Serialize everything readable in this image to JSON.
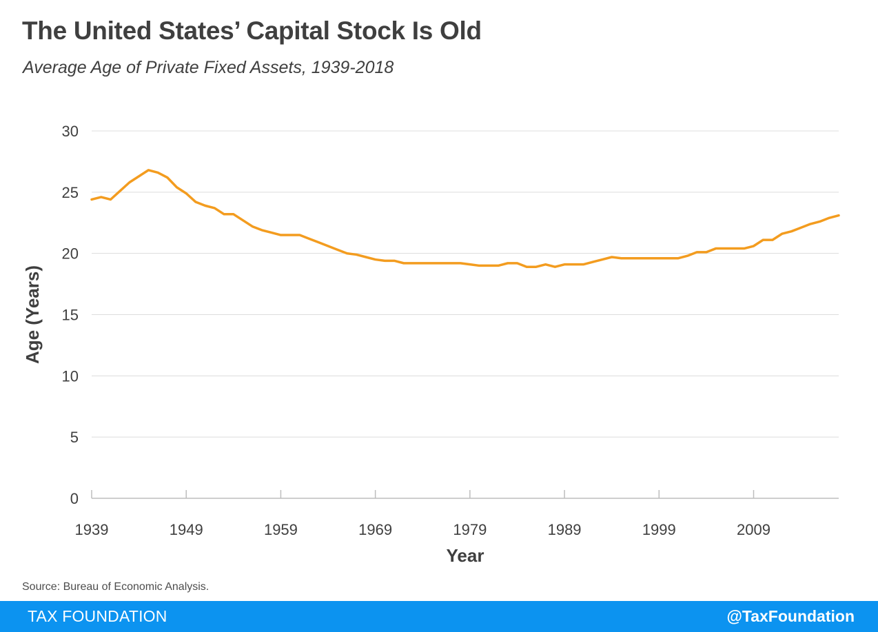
{
  "header": {
    "title": "The United States’ Capital Stock Is Old",
    "subtitle": "Average Age of Private Fixed Assets, 1939-2018"
  },
  "footer": {
    "source": "Source: Bureau of Economic Analysis.",
    "brand": "TAX FOUNDATION",
    "handle": "@TaxFoundation"
  },
  "colors": {
    "line": "#f39c1f",
    "grid": "#dcdcdc",
    "axis": "#bdbdbd",
    "text": "#3f3f3f",
    "footer_bg": "#0c93f0"
  },
  "chart_data": {
    "type": "line",
    "title": "The United States’ Capital Stock Is Old",
    "subtitle": "Average Age of Private Fixed Assets, 1939-2018",
    "xlabel": "Year",
    "ylabel": "Age (Years)",
    "ylim": [
      0,
      30
    ],
    "yticks": [
      0,
      5,
      10,
      15,
      20,
      25,
      30
    ],
    "xlim": [
      1939,
      2018
    ],
    "xticks": [
      1939,
      1949,
      1959,
      1969,
      1979,
      1989,
      1999,
      2009
    ],
    "grid": "horizontal",
    "legend": "none",
    "series": [
      {
        "x": [
          1939,
          1940,
          1941,
          1942,
          1943,
          1944,
          1945,
          1946,
          1947,
          1948,
          1949,
          1950,
          1951,
          1952,
          1953,
          1954,
          1955,
          1956,
          1957,
          1958,
          1959,
          1960,
          1961,
          1962,
          1963,
          1964,
          1965,
          1966,
          1967,
          1968,
          1969,
          1970,
          1971,
          1972,
          1973,
          1974,
          1975,
          1976,
          1977,
          1978,
          1979,
          1980,
          1981,
          1982,
          1983,
          1984,
          1985,
          1986,
          1987,
          1988,
          1989,
          1990,
          1991,
          1992,
          1993,
          1994,
          1995,
          1996,
          1997,
          1998,
          1999,
          2000,
          2001,
          2002,
          2003,
          2004,
          2005,
          2006,
          2007,
          2008,
          2009,
          2010,
          2011,
          2012,
          2013,
          2014,
          2015,
          2016,
          2017,
          2018
        ],
        "y": [
          24.4,
          24.6,
          24.4,
          25.1,
          25.8,
          26.3,
          26.8,
          26.6,
          26.2,
          25.4,
          24.9,
          24.2,
          23.9,
          23.7,
          23.2,
          23.2,
          22.7,
          22.2,
          21.9,
          21.7,
          21.5,
          21.5,
          21.5,
          21.2,
          20.9,
          20.6,
          20.3,
          20.0,
          19.9,
          19.7,
          19.5,
          19.4,
          19.4,
          19.2,
          19.2,
          19.2,
          19.2,
          19.2,
          19.2,
          19.2,
          19.1,
          19.0,
          19.0,
          19.0,
          19.2,
          19.2,
          18.9,
          18.9,
          19.1,
          18.9,
          19.1,
          19.1,
          19.1,
          19.3,
          19.5,
          19.7,
          19.6,
          19.6,
          19.6,
          19.6,
          19.6,
          19.6,
          19.6,
          19.8,
          20.1,
          20.1,
          20.4,
          20.4,
          20.4,
          20.4,
          20.6,
          21.1,
          21.1,
          21.6,
          21.8,
          22.1,
          22.4,
          22.6,
          22.9,
          23.1
        ]
      }
    ]
  }
}
